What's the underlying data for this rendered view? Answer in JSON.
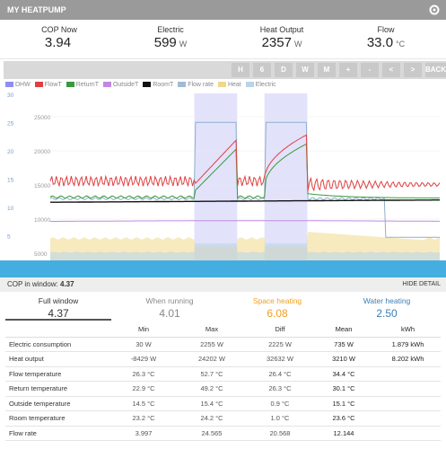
{
  "header": {
    "title": "MY HEATPUMP"
  },
  "stats": [
    {
      "label": "COP Now",
      "value": "3.94",
      "unit": ""
    },
    {
      "label": "Electric",
      "value": "599",
      "unit": "W"
    },
    {
      "label": "Heat Output",
      "value": "2357",
      "unit": "W"
    },
    {
      "label": "Flow",
      "value": "33.0",
      "unit": "°C"
    }
  ],
  "toolbar": {
    "buttons": [
      "H",
      "6",
      "D",
      "W",
      "M",
      "+",
      "-",
      "<",
      ">",
      "BACK"
    ]
  },
  "legend": [
    {
      "label": "DHW",
      "color": "#8e8ef0"
    },
    {
      "label": "FlowT",
      "color": "#e04040"
    },
    {
      "label": "ReturnT",
      "color": "#3a9a3a"
    },
    {
      "label": "OutsideT",
      "color": "#c08ae0"
    },
    {
      "label": "RoomT",
      "color": "#111111"
    },
    {
      "label": "Flow rate",
      "color": "#9fbcd6"
    },
    {
      "label": "Heat",
      "color": "#f0d88a"
    },
    {
      "label": "Electric",
      "color": "#b8d4ec"
    }
  ],
  "chart_data": {
    "type": "line",
    "y_left_ticks": [
      "30",
      "25",
      "20",
      "15",
      "10",
      "5"
    ],
    "y_right_ticks": [
      "25000",
      "20000",
      "15000",
      "10000",
      "5000"
    ],
    "dhw_periods": [
      [
        0.37,
        0.48
      ],
      [
        0.55,
        0.66
      ]
    ],
    "y_power_range": [
      0,
      26000
    ],
    "y_temp_range": [
      0,
      60
    ],
    "series": [
      {
        "name": "FlowT",
        "color": "#e04040"
      },
      {
        "name": "ReturnT",
        "color": "#3a9a3a"
      },
      {
        "name": "OutsideT",
        "color": "#c08ae0"
      },
      {
        "name": "RoomT",
        "color": "#111111"
      },
      {
        "name": "Flow rate",
        "color": "#9fbcd6"
      },
      {
        "name": "Heat",
        "color": "#f0d88a"
      },
      {
        "name": "Electric",
        "color": "#b8d4ec"
      }
    ]
  },
  "cop_window": {
    "label": "COP in window:",
    "value": "4.37",
    "hide_label": "HIDE DETAIL"
  },
  "tabs": [
    {
      "label": "Full window",
      "value": "4.37",
      "color": "#333333"
    },
    {
      "label": "When running",
      "value": "4.01",
      "color": "#888888"
    },
    {
      "label": "Space heating",
      "value": "6.08",
      "color": "#f0a020"
    },
    {
      "label": "Water heating",
      "value": "2.50",
      "color": "#3a7fb8"
    }
  ],
  "table": {
    "headers": [
      "",
      "Min",
      "Max",
      "Diff",
      "Mean",
      "kWh"
    ],
    "rows": [
      [
        "Electric consumption",
        "30 W",
        "2255 W",
        "2225 W",
        "735 W",
        "1.879 kWh"
      ],
      [
        "Heat output",
        "-8429 W",
        "24202 W",
        "32632 W",
        "3210 W",
        "8.202 kWh"
      ],
      [
        "Flow temperature",
        "26.3 °C",
        "52.7 °C",
        "26.4 °C",
        "34.4 °C",
        ""
      ],
      [
        "Return temperature",
        "22.9 °C",
        "49.2 °C",
        "26.3 °C",
        "30.1 °C",
        ""
      ],
      [
        "Outside temperature",
        "14.5 °C",
        "15.4 °C",
        "0.9 °C",
        "15.1 °C",
        ""
      ],
      [
        "Room temperature",
        "23.2 °C",
        "24.2 °C",
        "1.0 °C",
        "23.6 °C",
        ""
      ],
      [
        "Flow rate",
        "3.997",
        "24.565",
        "20.568",
        "12.144",
        ""
      ]
    ]
  }
}
